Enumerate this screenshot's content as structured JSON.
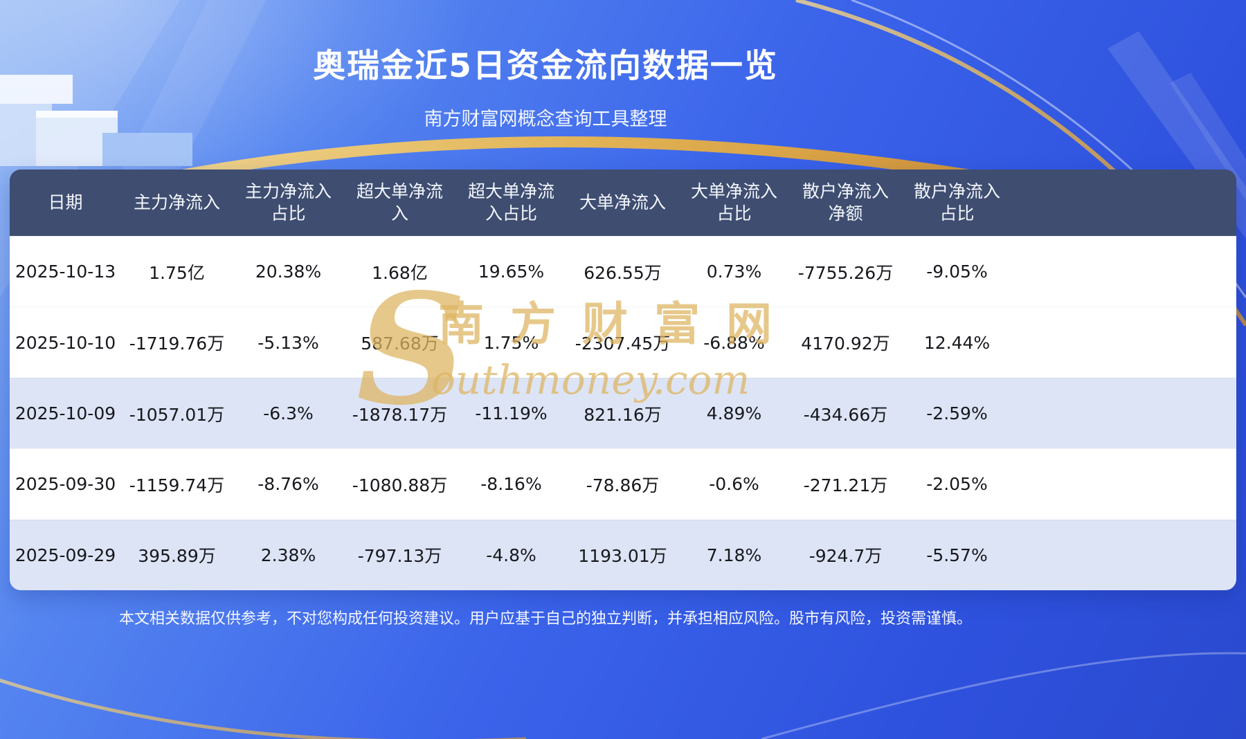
{
  "page": {
    "title": "奥瑞金近5日资金流向数据一览",
    "subtitle": "南方财富网概念查询工具整理",
    "disclaimer": "本文相关数据仅供参考，不对您构成任何投资建议。用户应基于自己的独立判断，并承担相应风险。股市有风险，投资需谨慎。"
  },
  "watermark": {
    "initial": "S",
    "cn": "南方财富网",
    "en": "outhmoney.com"
  },
  "colors": {
    "background_top": "#8cb4f4",
    "background_bottom": "#2a49cf",
    "header_bg": "#3e4d70",
    "row_plain": "#ffffff",
    "row_shaded": "#dde4f5",
    "accent_gold": "#e9b84f",
    "title_text": "#ffffff"
  },
  "table": {
    "header_lines": [
      "日期",
      "主力净流入",
      "主力净流入\n占比",
      "超大单净流\n入",
      "超大单净流\n入占比",
      "大单净流入",
      "大单净流入\n占比",
      "散户净流入\n净额",
      "散户净流入\n占比"
    ]
  },
  "chart_data": {
    "type": "table",
    "title": "奥瑞金近5日资金流向数据一览",
    "subtitle": "南方财富网概念查询工具整理",
    "columns": [
      "日期",
      "主力净流入",
      "主力净流入占比",
      "超大单净流入",
      "超大单净流入占比",
      "大单净流入",
      "大单净流入占比",
      "散户净流入净额",
      "散户净流入占比"
    ],
    "rows": [
      [
        "2025-10-13",
        "1.75亿",
        "20.38%",
        "1.68亿",
        "19.65%",
        "626.55万",
        "0.73%",
        "-7755.26万",
        "-9.05%"
      ],
      [
        "2025-10-10",
        "-1719.76万",
        "-5.13%",
        "587.68万",
        "1.75%",
        "-2307.45万",
        "-6.88%",
        "4170.92万",
        "12.44%"
      ],
      [
        "2025-10-09",
        "-1057.01万",
        "-6.3%",
        "-1878.17万",
        "-11.19%",
        "821.16万",
        "4.89%",
        "-434.66万",
        "-2.59%"
      ],
      [
        "2025-09-30",
        "-1159.74万",
        "-8.76%",
        "-1080.88万",
        "-8.16%",
        "-78.86万",
        "-0.6%",
        "-271.21万",
        "-2.05%"
      ],
      [
        "2025-09-29",
        "395.89万",
        "2.38%",
        "-797.13万",
        "-4.8%",
        "1193.01万",
        "7.18%",
        "-924.7万",
        "-5.57%"
      ]
    ]
  }
}
